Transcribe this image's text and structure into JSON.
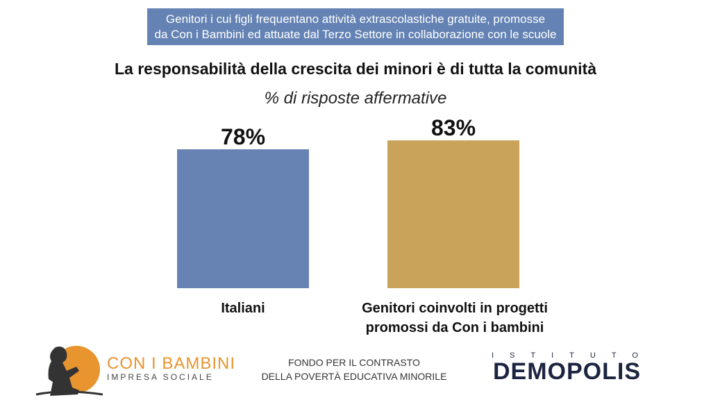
{
  "banner": {
    "line1": "Genitori i cui figli frequentano attività extrascolastiche gratuite, promosse",
    "line2": "da Con i Bambini ed attuate dal Terzo Settore in collaborazione con le scuole"
  },
  "chart_data": {
    "type": "bar",
    "title": "La responsabilità della crescita dei minori è di tutta la comunità",
    "subtitle": "% di risposte affermative",
    "categories": [
      [
        "Italiani"
      ],
      [
        "Genitori coinvolti in progetti",
        "promossi da Con i bambini"
      ]
    ],
    "values": [
      78,
      83
    ],
    "data_labels": [
      "78%",
      "83%"
    ],
    "colors": [
      "#6683b3",
      "#c9a35a"
    ],
    "ylim": [
      0,
      100
    ],
    "grid": false,
    "legend": "none"
  },
  "footer": {
    "line1": "FONDO PER IL CONTRASTO",
    "line2": "DELLA POVERTÀ EDUCATIVA MINORILE"
  },
  "logos": {
    "left_brand": "CON I BAMBINI",
    "left_sub": "IMPRESA SOCIALE",
    "left_accent": "#e8942f",
    "right_top": "ISTITUTO",
    "right_name": "DEMOPOLIS",
    "right_color": "#1c2540"
  }
}
